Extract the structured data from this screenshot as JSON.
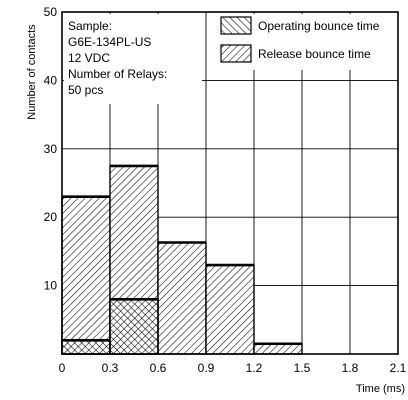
{
  "chart_data": {
    "type": "bar",
    "xlabel": "Time (ms)",
    "ylabel": "Number of contacts",
    "xlim": [
      0,
      2.1
    ],
    "ylim": [
      0,
      50
    ],
    "x_ticks": [
      "0",
      "0.3",
      "0.6",
      "0.9",
      "1.2",
      "1.5",
      "1.8",
      "2.1"
    ],
    "y_ticks": [
      "10",
      "20",
      "30",
      "40",
      "50"
    ],
    "grid": true,
    "bin_edges": [
      0,
      0.3,
      0.6,
      0.9,
      1.2,
      1.5,
      1.8,
      2.1
    ],
    "series": [
      {
        "name": "Operating bounce time",
        "hatch": "forward-diagonal",
        "values": [
          2,
          8,
          0,
          0,
          0,
          0,
          0
        ]
      },
      {
        "name": "Release bounce time",
        "hatch": "backward-diagonal",
        "values": [
          23,
          27.5,
          16.3,
          13,
          1.5,
          0,
          0
        ]
      }
    ],
    "legend_position": "top-right",
    "annotation": [
      "Sample:",
      "G6E-134PL-US",
      "12 VDC",
      "Number of Relays:",
      "50 pcs"
    ]
  }
}
